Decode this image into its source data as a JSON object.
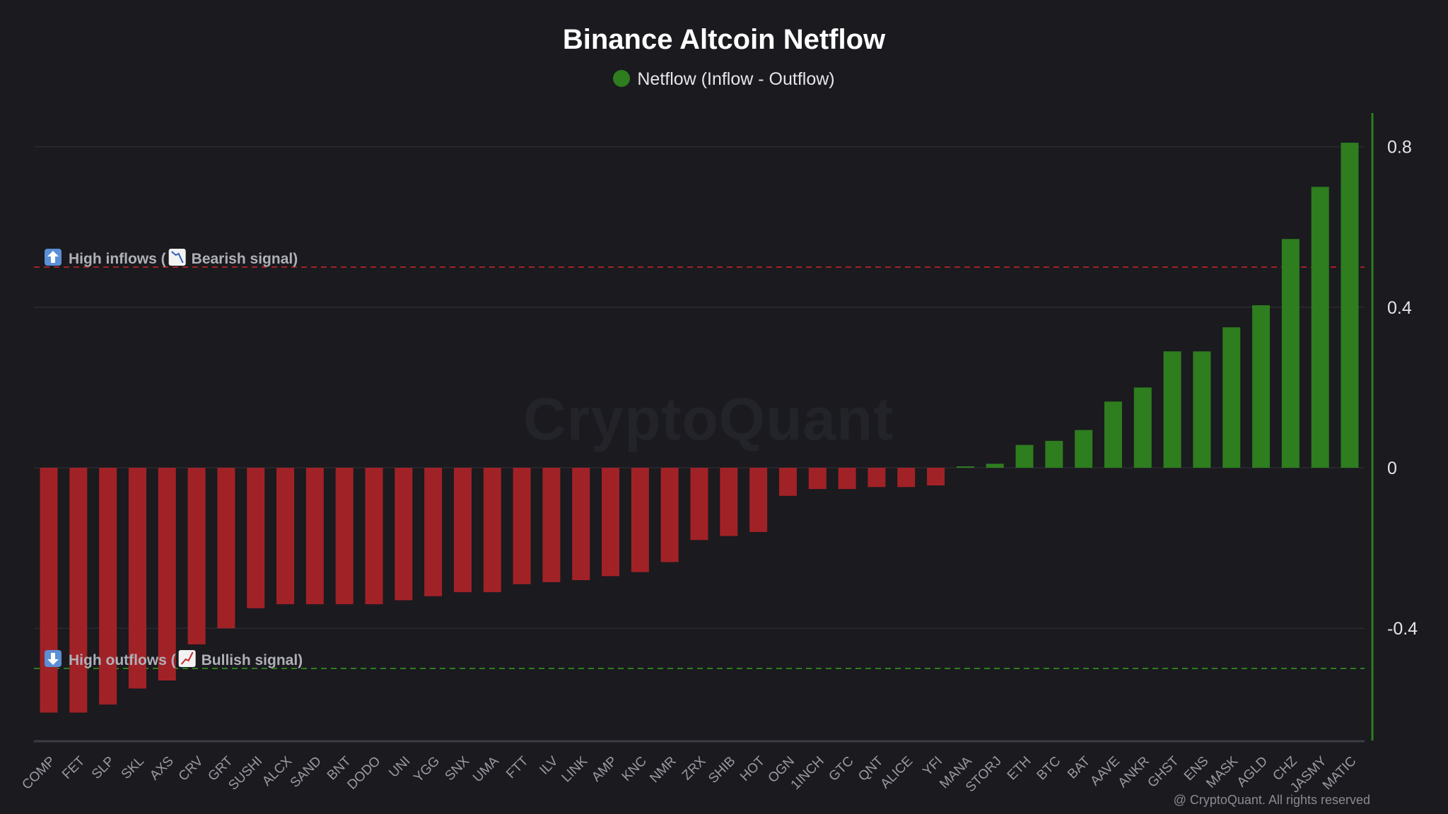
{
  "chart_data": {
    "type": "bar",
    "title": "Binance Altcoin Netflow",
    "legend": [
      {
        "label": "Netflow (Inflow - Outflow)",
        "color": "#2e7d1e"
      }
    ],
    "legend_placement": "top-center",
    "categories": [
      "COMP",
      "FET",
      "SLP",
      "SKL",
      "AXS",
      "CRV",
      "GRT",
      "SUSHI",
      "ALCX",
      "SAND",
      "BNT",
      "DODO",
      "UNI",
      "YGG",
      "SNX",
      "UMA",
      "FTT",
      "ILV",
      "LINK",
      "AMP",
      "KNC",
      "NMR",
      "ZRX",
      "SHIB",
      "HOT",
      "OGN",
      "1INCH",
      "GTC",
      "QNT",
      "ALICE",
      "YFI",
      "MANA",
      "STORJ",
      "ETH",
      "BTC",
      "BAT",
      "AAVE",
      "ANKR",
      "GHST",
      "ENS",
      "MASK",
      "AGLD",
      "CHZ",
      "JASMY",
      "MATIC"
    ],
    "values": [
      -0.61,
      -0.61,
      -0.59,
      -0.55,
      -0.53,
      -0.44,
      -0.4,
      -0.35,
      -0.34,
      -0.34,
      -0.34,
      -0.34,
      -0.33,
      -0.32,
      -0.31,
      -0.31,
      -0.29,
      -0.285,
      -0.28,
      -0.27,
      -0.26,
      -0.235,
      -0.18,
      -0.17,
      -0.16,
      -0.07,
      -0.053,
      -0.053,
      -0.048,
      -0.048,
      -0.044,
      0.002,
      0.01,
      0.057,
      0.067,
      0.094,
      0.165,
      0.2,
      0.29,
      0.29,
      0.35,
      0.405,
      0.57,
      0.7,
      0.81
    ],
    "positive_color": "#2e7d1e",
    "negative_color": "#a12226",
    "ylim": [
      -0.68,
      0.9
    ],
    "yticks": [
      0.8,
      0.4,
      0,
      -0.4
    ],
    "ytick_labels": [
      "0.8",
      "0.4",
      "0",
      "-0.4"
    ],
    "grid": true,
    "xlabel": "",
    "ylabel": "",
    "annotations": [
      {
        "value": 0.5,
        "color": "#a12226",
        "icon": "up-arrow-icon",
        "text": "High inflows (",
        "icon2": "chart-decreasing-icon",
        "text2": "Bearish signal)"
      },
      {
        "value": -0.5,
        "color": "#2e7d1e",
        "icon": "down-arrow-icon",
        "text": "High outflows (",
        "icon2": "chart-increasing-icon",
        "text2": "Bullish signal)"
      }
    ]
  },
  "watermark": "CryptoQuant",
  "copyright": "@ CryptoQuant. All rights reserved"
}
